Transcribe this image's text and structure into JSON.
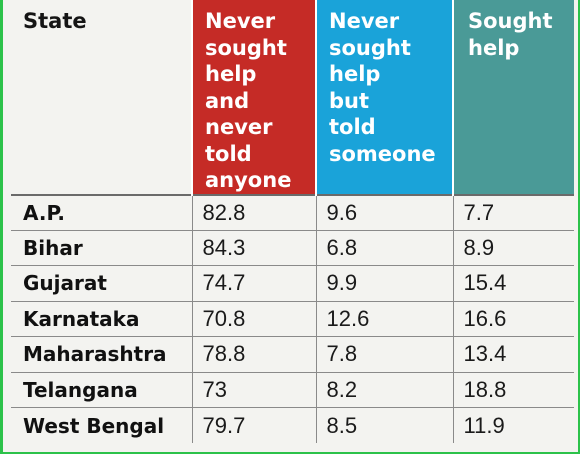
{
  "chart_data": {
    "type": "table",
    "columns": [
      "State",
      "Never sought help and never told anyone",
      "Never sought help but told someone",
      "Sought help"
    ],
    "header_lines": [
      [
        "State"
      ],
      [
        "Never",
        "sought",
        "help",
        "and",
        "never",
        "told",
        "anyone"
      ],
      [
        "Never",
        "sought",
        "help",
        "but",
        "told",
        "someone"
      ],
      [
        "Sought",
        "help"
      ]
    ],
    "header_colors": [
      "#f3f3f0",
      "#c52b26",
      "#1aa3d9",
      "#4a9a97"
    ],
    "rows": [
      {
        "state": "A.P.",
        "values": [
          "82.8",
          "9.6",
          "7.7"
        ]
      },
      {
        "state": "Bihar",
        "values": [
          "84.3",
          "6.8",
          "8.9"
        ]
      },
      {
        "state": "Gujarat",
        "values": [
          "74.7",
          "9.9",
          "15.4"
        ]
      },
      {
        "state": "Karnataka",
        "values": [
          "70.8",
          "12.6",
          "16.6"
        ]
      },
      {
        "state": "Maharashtra",
        "values": [
          "78.8",
          "7.8",
          "13.4"
        ]
      },
      {
        "state": "Telangana",
        "values": [
          "73",
          "8.2",
          "18.8"
        ]
      },
      {
        "state": "West Bengal",
        "values": [
          "79.7",
          "8.5",
          "11.9"
        ]
      }
    ]
  }
}
